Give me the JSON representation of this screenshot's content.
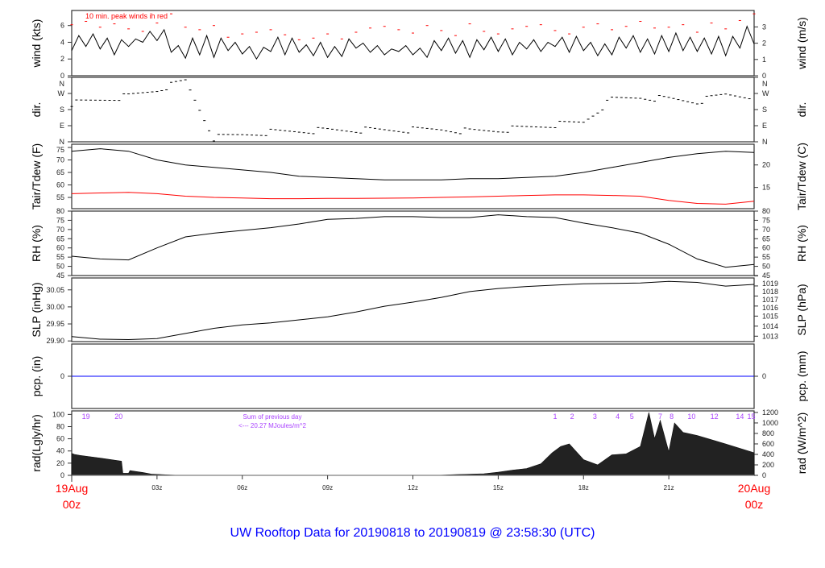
{
  "title": "UW Rooftop Data for 20190818  to  20190819 @ 23:58:30  (UTC)",
  "colors": {
    "line": "#000000",
    "peak": "#ff0000",
    "dewpoint": "#ff0000",
    "precip": "#0000ff",
    "purple": "#aa44ff",
    "title": "#0000ff",
    "date": "#ff0000"
  },
  "chart_data": [
    {
      "type": "line",
      "ylabel": "wind (kts)",
      "ylabel_right": "wind (m/s)",
      "annotation": "10 min. peak winds ih red",
      "ylim": [
        0,
        7.8
      ],
      "yticks": [
        0,
        2,
        4,
        6
      ],
      "yticks_right": [
        0,
        1,
        2,
        3
      ],
      "right_factor": 1.944,
      "x": "hours 00z–24z, half-hourly",
      "series": [
        {
          "values": [
            3.0,
            4.8,
            3.5,
            5.0,
            3.2,
            4.5,
            2.5,
            4.3,
            3.5,
            4.4,
            4.0,
            5.3,
            4.2,
            5.5,
            2.8,
            3.6,
            2.1,
            4.5,
            2.5,
            4.8,
            2.2,
            4.5,
            3.0,
            4.0,
            2.6,
            3.5,
            2.0,
            3.4,
            2.9,
            4.6,
            2.5,
            4.5,
            2.8,
            3.7,
            2.4,
            4.0,
            2.2,
            3.5,
            2.3,
            4.4,
            3.3,
            3.9,
            2.8,
            3.6,
            2.5,
            3.2,
            2.9,
            3.6,
            2.5,
            3.3,
            2.2,
            4.2,
            3.0,
            4.5,
            2.7,
            4.2,
            2.2,
            4.3,
            3.1,
            4.6,
            2.9,
            4.4,
            2.5,
            4.0,
            3.2,
            4.3,
            2.9,
            4.0,
            3.5,
            4.6,
            2.8,
            4.7,
            3.0,
            4.0,
            2.4,
            3.8,
            2.5,
            4.6,
            3.3,
            4.8,
            2.8,
            4.4,
            2.6,
            4.8,
            2.9,
            5.1,
            3.0,
            4.6,
            2.9,
            4.5,
            2.6,
            4.7,
            2.4,
            4.7,
            3.3,
            5.9,
            3.8
          ]
        },
        {
          "name": "peak",
          "values": [
            6.1,
            6.5,
            5.8,
            6.2,
            5.6,
            5.3,
            6.3,
            7.4,
            5.8,
            5.5,
            6.0,
            4.6,
            5.0,
            5.2,
            5.5,
            4.9,
            4.3,
            4.5,
            5.0,
            4.4,
            5.2,
            5.7,
            5.9,
            5.5,
            5.1,
            6.0,
            5.4,
            4.8,
            6.2,
            5.3,
            5.0,
            5.6,
            5.9,
            6.1,
            5.4,
            5.0,
            5.8,
            6.2,
            5.5,
            5.9,
            6.5,
            5.7,
            5.8,
            6.1,
            5.2,
            6.3,
            5.6,
            6.6,
            7.4
          ]
        }
      ]
    },
    {
      "type": "scatter",
      "ylabel": "dir.",
      "ylabel_right": "dir.",
      "ylim": [
        0,
        360
      ],
      "ytick_labels": [
        "N",
        "E",
        "S",
        "W",
        "N"
      ],
      "yticks": [
        0,
        90,
        180,
        270,
        360
      ],
      "values_hourly_deg": [
        215,
        235,
        255,
        290,
        340,
        20,
        40,
        55,
        60,
        65,
        65,
        65,
        65,
        70,
        60,
        65,
        80,
        95,
        110,
        235,
        250,
        240,
        225,
        265,
        255
      ]
    },
    {
      "type": "line",
      "ylabel": "Tair/Tdew (F)",
      "ylabel_right": "Tair/Tdew (C)",
      "ylim": [
        50.5,
        76.3
      ],
      "yticks": [
        55,
        60,
        65,
        70,
        75
      ],
      "yticks_right": [
        15,
        20
      ],
      "series": [
        {
          "name": "Tair",
          "values": [
            73.5,
            74.5,
            73.5,
            70,
            68,
            67,
            66,
            65,
            63.5,
            63,
            62.5,
            62,
            62,
            62,
            62.5,
            62.5,
            63,
            63.5,
            65,
            67,
            69,
            71,
            72.5,
            73.5,
            73
          ]
        },
        {
          "name": "Tdew",
          "values": [
            56.5,
            56.8,
            57,
            56.5,
            55.5,
            55,
            54.8,
            54.5,
            54.5,
            54.6,
            54.6,
            54.7,
            54.8,
            55,
            55.2,
            55.5,
            55.8,
            56,
            56,
            55.8,
            55.5,
            53.8,
            52.6,
            52.3,
            53.5
          ]
        }
      ]
    },
    {
      "type": "line",
      "ylabel": "RH (%)",
      "ylabel_right": "RH (%)",
      "ylim": [
        45,
        80
      ],
      "yticks": [
        45,
        50,
        55,
        60,
        65,
        70,
        75,
        80
      ],
      "series": [
        {
          "values": [
            55.5,
            54,
            53.5,
            60,
            66,
            68,
            69.5,
            71,
            73,
            75.5,
            76,
            77,
            77,
            76.5,
            76.5,
            78,
            77,
            76.5,
            73.5,
            71,
            68,
            62,
            54,
            49.5,
            51
          ]
        }
      ]
    },
    {
      "type": "line",
      "ylabel": "SLP (inHg)",
      "ylabel_right": "SLP (hPa)",
      "ylim": [
        29.898,
        30.085
      ],
      "yticks": [
        29.9,
        29.95,
        30.0,
        30.05
      ],
      "ytick_labels": [
        "29.90",
        "29.95",
        "30.00",
        "30.05"
      ],
      "yticks_right": [
        1013,
        1014,
        1015,
        1016,
        1017,
        1018,
        1019
      ],
      "series": [
        {
          "values": [
            29.913,
            29.905,
            29.904,
            29.907,
            29.922,
            29.937,
            29.947,
            29.953,
            29.962,
            29.971,
            29.985,
            30.002,
            30.014,
            30.028,
            30.045,
            30.054,
            30.06,
            30.064,
            30.068,
            30.069,
            30.07,
            30.075,
            30.072,
            30.061,
            30.066
          ]
        }
      ]
    },
    {
      "type": "line",
      "ylabel": "pcp. (in)",
      "ylabel_right": "pcp. (mm)",
      "ylim": [
        -1,
        1
      ],
      "yticks": [
        0
      ],
      "yticks_right": [
        0
      ],
      "series": [
        {
          "values": [
            0,
            0,
            0,
            0,
            0,
            0,
            0,
            0,
            0,
            0,
            0,
            0,
            0,
            0,
            0,
            0,
            0,
            0,
            0,
            0,
            0,
            0,
            0,
            0,
            0
          ]
        }
      ]
    },
    {
      "type": "area",
      "ylabel": "rad(Lgly/hr)",
      "ylabel_right": "rad (W/m^2)",
      "ylim": [
        0,
        1230
      ],
      "yticks_right": [
        0,
        200,
        400,
        600,
        800,
        1000,
        1200
      ],
      "yticks_left": [
        0,
        20,
        40,
        60,
        80,
        100
      ],
      "left_factor": 11.63,
      "annotation": [
        "Sum of previous day",
        "<--- 20.27 MJoules/m^2"
      ],
      "hour_markers": [
        [
          0.5,
          "19"
        ],
        [
          1.65,
          "20"
        ],
        [
          17.0,
          "1"
        ],
        [
          17.6,
          "2"
        ],
        [
          18.4,
          "3"
        ],
        [
          19.2,
          "4"
        ],
        [
          19.7,
          "5"
        ],
        [
          20.7,
          "7"
        ],
        [
          21.1,
          "8"
        ],
        [
          21.8,
          "10"
        ],
        [
          22.6,
          "12"
        ],
        [
          23.5,
          "14"
        ],
        [
          23.9,
          "15"
        ]
      ],
      "points": [
        [
          0,
          420
        ],
        [
          0.1,
          400
        ],
        [
          0.3,
          380
        ],
        [
          1.0,
          330
        ],
        [
          1.75,
          270
        ],
        [
          1.8,
          40
        ],
        [
          2.0,
          40
        ],
        [
          2.05,
          90
        ],
        [
          2.3,
          70
        ],
        [
          2.5,
          55
        ],
        [
          2.8,
          25
        ],
        [
          3.3,
          10
        ],
        [
          3.8,
          0
        ],
        [
          12.8,
          0
        ],
        [
          13.5,
          15
        ],
        [
          14.5,
          30
        ],
        [
          15.0,
          60
        ],
        [
          15.5,
          100
        ],
        [
          16.0,
          130
        ],
        [
          16.5,
          220
        ],
        [
          16.9,
          430
        ],
        [
          17.2,
          550
        ],
        [
          17.5,
          600
        ],
        [
          17.7,
          480
        ],
        [
          18.0,
          300
        ],
        [
          18.5,
          200
        ],
        [
          19.0,
          390
        ],
        [
          19.5,
          410
        ],
        [
          20.0,
          550
        ],
        [
          20.3,
          1200
        ],
        [
          20.5,
          700
        ],
        [
          20.7,
          1050
        ],
        [
          21.0,
          450
        ],
        [
          21.2,
          1000
        ],
        [
          21.5,
          820
        ],
        [
          22.0,
          760
        ],
        [
          23.0,
          600
        ],
        [
          24.0,
          430
        ]
      ]
    }
  ],
  "xaxis": {
    "ticks": [
      [
        3,
        "03z"
      ],
      [
        6,
        "06z"
      ],
      [
        9,
        "09z"
      ],
      [
        12,
        "12z"
      ],
      [
        15,
        "15z"
      ],
      [
        18,
        "18z"
      ],
      [
        21,
        "21z"
      ]
    ],
    "start": [
      "19Aug",
      "00z"
    ],
    "end": [
      "20Aug",
      "00z"
    ]
  }
}
